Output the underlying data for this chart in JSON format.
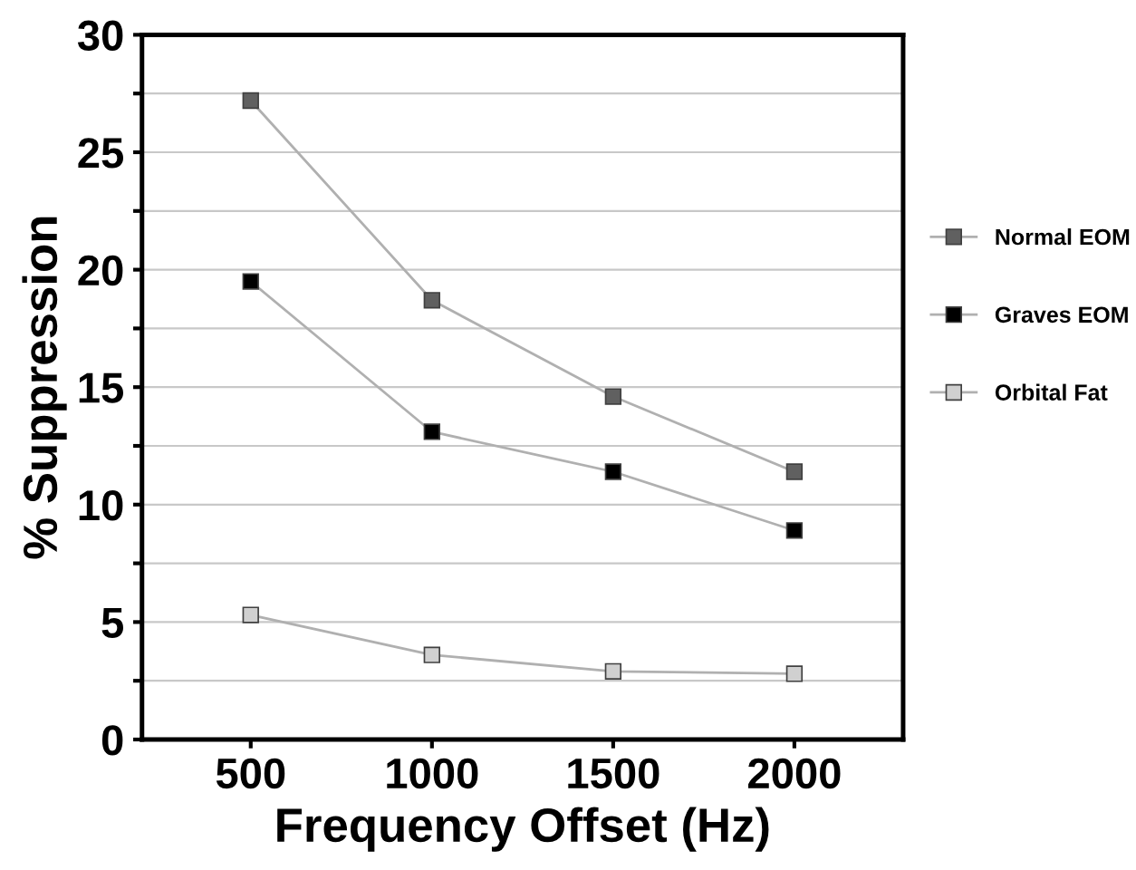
{
  "chart_data": {
    "type": "line",
    "xlabel": "Frequency Offset (Hz)",
    "ylabel": "% Suppression",
    "categories": [
      "500",
      "1000",
      "1500",
      "2000"
    ],
    "series": [
      {
        "name": "Normal EOM",
        "color": "#606060",
        "values": [
          27.2,
          18.7,
          14.6,
          11.4
        ]
      },
      {
        "name": "Graves EOM",
        "color": "#000000",
        "values": [
          19.5,
          13.1,
          11.4,
          8.9
        ]
      },
      {
        "name": "Orbital Fat",
        "color": "#d0d0d0",
        "values": [
          5.3,
          3.6,
          2.9,
          2.8
        ]
      }
    ],
    "ylim": [
      0,
      30
    ],
    "yticks": [
      0,
      {
        "value": 2.5,
        "label": null
      },
      5,
      {
        "value": 7.5,
        "label": null
      },
      10,
      {
        "value": 12.5,
        "label": null
      },
      15,
      {
        "value": 17.5,
        "label": null
      },
      20,
      {
        "value": 22.5,
        "label": null
      },
      25,
      {
        "value": 27.5,
        "label": null
      },
      30
    ],
    "grid": "y",
    "legend": "right",
    "marker": "square",
    "line_style": "solid"
  }
}
